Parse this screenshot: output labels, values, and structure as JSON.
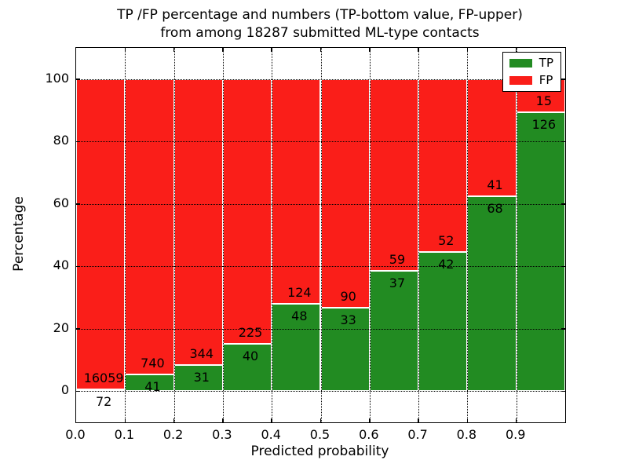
{
  "chart_data": {
    "type": "bar",
    "stacked": true,
    "title_line1": "TP /FP percentage and numbers (TP-bottom value, FP-upper)",
    "title_line2": "from among 18287 submitted ML-type contacts",
    "total_contacts": 18287,
    "xlabel": "Predicted probability",
    "ylabel": "Percentage",
    "xlim": [
      0.0,
      1.0
    ],
    "ylim": [
      -10,
      110
    ],
    "x_tick_labels": [
      "0.0",
      "0.1",
      "0.2",
      "0.3",
      "0.4",
      "0.5",
      "0.6",
      "0.7",
      "0.8",
      "0.9"
    ],
    "y_tick_values": [
      0,
      20,
      40,
      60,
      80,
      100
    ],
    "bin_edges": [
      0.0,
      0.1,
      0.2,
      0.3,
      0.4,
      0.5,
      0.6,
      0.7,
      0.8,
      0.9,
      1.0
    ],
    "grid": true,
    "series": [
      {
        "name": "TP",
        "color": "#228b22",
        "counts": [
          72,
          41,
          31,
          40,
          48,
          33,
          37,
          42,
          68,
          126
        ],
        "percent": [
          0.45,
          5.25,
          8.27,
          15.09,
          27.91,
          26.83,
          38.54,
          44.68,
          62.39,
          89.36
        ]
      },
      {
        "name": "FP",
        "color": "#fa1e19",
        "counts": [
          16059,
          740,
          344,
          225,
          124,
          90,
          59,
          52,
          41,
          15
        ],
        "percent": [
          99.55,
          94.75,
          91.73,
          84.91,
          72.09,
          73.17,
          61.46,
          55.32,
          37.61,
          10.64
        ]
      }
    ],
    "legend": {
      "position": "upper right",
      "entries": [
        {
          "label": "TP",
          "color": "#228b22"
        },
        {
          "label": "FP",
          "color": "#fa1e19"
        }
      ]
    }
  }
}
